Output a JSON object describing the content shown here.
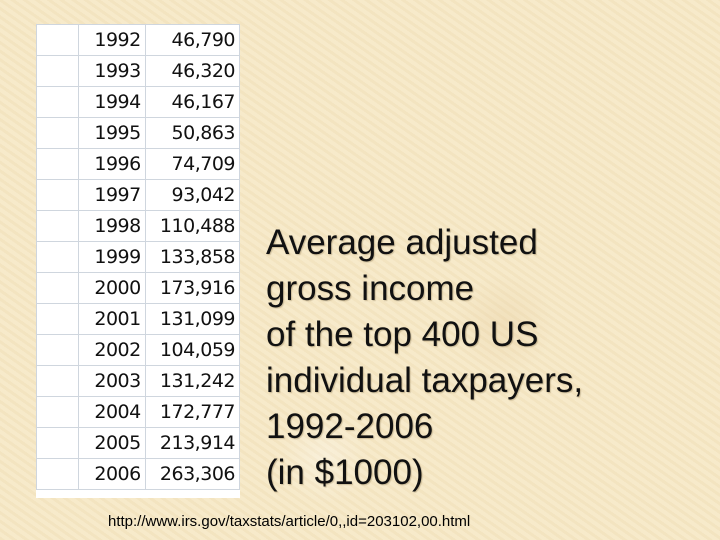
{
  "table": {
    "rows": [
      {
        "year": "1992",
        "value": "46,790"
      },
      {
        "year": "1993",
        "value": "46,320"
      },
      {
        "year": "1994",
        "value": "46,167"
      },
      {
        "year": "1995",
        "value": "50,863"
      },
      {
        "year": "1996",
        "value": "74,709"
      },
      {
        "year": "1997",
        "value": "93,042"
      },
      {
        "year": "1998",
        "value": "110,488"
      },
      {
        "year": "1999",
        "value": "133,858"
      },
      {
        "year": "2000",
        "value": "173,916"
      },
      {
        "year": "2001",
        "value": "131,099"
      },
      {
        "year": "2002",
        "value": "104,059"
      },
      {
        "year": "2003",
        "value": "131,242"
      },
      {
        "year": "2004",
        "value": "172,777"
      },
      {
        "year": "2005",
        "value": "213,914"
      },
      {
        "year": "2006",
        "value": "263,306"
      }
    ]
  },
  "caption": {
    "lines": [
      "Average adjusted",
      "gross income",
      "of the top 400 US",
      "individual taxpayers,",
      "1992-2006",
      "(in $1000)"
    ]
  },
  "source": "http://www.irs.gov/taxstats/article/0,,id=203102,00.html"
}
